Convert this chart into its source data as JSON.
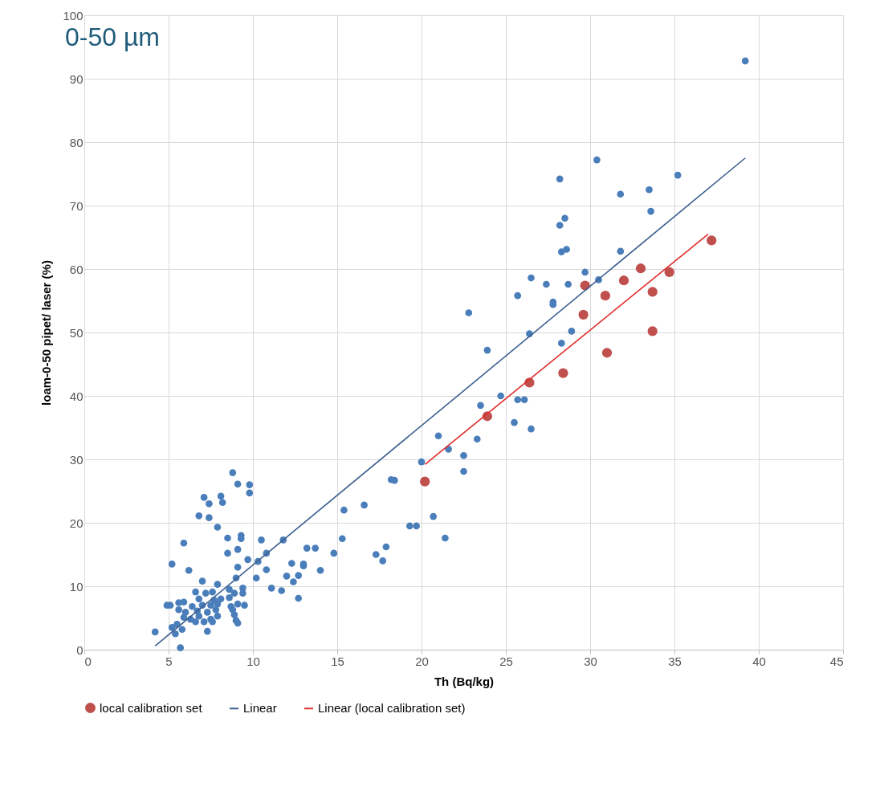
{
  "chart_data": {
    "type": "scatter",
    "title": "0-50 µm",
    "xlabel": "Th (Bq/kg)",
    "ylabel": "loam-0-50 pipet/ laser (%)",
    "xlim": [
      0,
      45
    ],
    "xticks": [
      0,
      5,
      10,
      15,
      20,
      25,
      30,
      35,
      40,
      45
    ],
    "ylim": [
      0,
      100
    ],
    "yticks": [
      0,
      10,
      20,
      30,
      40,
      50,
      60,
      70,
      80,
      90,
      100
    ],
    "grid": true,
    "legend": "bottom",
    "series": [
      {
        "marker": "circle",
        "color": "#4a7ebb",
        "x": [
          39.2,
          30.4,
          28.2,
          35.2,
          33.5,
          31.8,
          33.6,
          28.5,
          28.2,
          28.6,
          28.3,
          31.8,
          29.7,
          26.5,
          30.5,
          27.4,
          28.7,
          25.7,
          27.8,
          27.8,
          22.8,
          28.9,
          26.4,
          28.3,
          23.9,
          24.7,
          23.5,
          25.7,
          26.1,
          25.5,
          26.5,
          21.0,
          23.3,
          20.0,
          22.5,
          21.6,
          22.5,
          18.2,
          18.4,
          16.6,
          15.4,
          20.7,
          19.3,
          19.7,
          21.4,
          15.3,
          17.3,
          17.9,
          17.7,
          14.8,
          13.2,
          13.7,
          14.0,
          13.0,
          13.0,
          12.3,
          12.7,
          12.0,
          12.7,
          12.4,
          11.7,
          11.1,
          10.8,
          10.2,
          10.8,
          10.5,
          11.8,
          10.3,
          8.8,
          9.1,
          9.8,
          9.8,
          7.1,
          8.1,
          7.4,
          8.2,
          6.8,
          7.4,
          7.9,
          5.9,
          8.5,
          9.3,
          9.3,
          9.1,
          8.5,
          5.2,
          9.7,
          6.2,
          9.1,
          9.0,
          7.0,
          7.9,
          9.4,
          4.2,
          5.7,
          5.2,
          5.4,
          7.3,
          4.9,
          5.1,
          6.6,
          7.2,
          7.6,
          8.6,
          9.4,
          8.9,
          6.8,
          8.1,
          7.7,
          8.6,
          5.6,
          5.9,
          6.4,
          7.0,
          7.5,
          7.9,
          8.7,
          9.1,
          9.5,
          5.6,
          6.0,
          6.7,
          7.3,
          7.8,
          8.8,
          5.9,
          6.3,
          6.8,
          7.5,
          7.9,
          8.9,
          9.0,
          9.1,
          5.5,
          6.6,
          7.1,
          7.6,
          5.8
        ],
        "values": [
          92.8,
          77.2,
          74.2,
          74.8,
          72.5,
          71.8,
          69.1,
          68.0,
          66.9,
          63.1,
          62.7,
          62.8,
          59.5,
          58.6,
          58.3,
          57.6,
          57.6,
          55.8,
          54.8,
          54.4,
          53.1,
          50.2,
          49.8,
          48.3,
          47.2,
          40.0,
          38.5,
          39.4,
          39.4,
          35.8,
          34.8,
          33.7,
          33.2,
          29.6,
          30.6,
          31.6,
          28.1,
          26.8,
          26.7,
          22.8,
          22.0,
          21.0,
          19.5,
          19.5,
          17.6,
          17.5,
          15.0,
          16.2,
          14.0,
          15.2,
          16.0,
          16.0,
          12.5,
          13.5,
          13.2,
          13.6,
          11.7,
          11.6,
          8.1,
          10.7,
          9.3,
          9.7,
          12.6,
          11.3,
          15.2,
          17.3,
          17.3,
          13.9,
          27.9,
          26.1,
          26.0,
          24.7,
          24.0,
          24.2,
          23.0,
          23.2,
          21.1,
          20.8,
          19.3,
          16.8,
          17.6,
          18.0,
          17.5,
          15.8,
          15.2,
          13.5,
          14.2,
          12.5,
          13.0,
          11.3,
          10.8,
          10.3,
          9.7,
          2.8,
          0.3,
          3.5,
          2.5,
          2.9,
          7.0,
          7.0,
          9.1,
          8.9,
          9.1,
          9.5,
          8.9,
          8.9,
          8.0,
          8.0,
          7.8,
          8.2,
          7.4,
          7.5,
          6.8,
          7.0,
          7.0,
          7.2,
          6.8,
          7.2,
          7.0,
          6.3,
          5.9,
          6.1,
          5.9,
          6.3,
          6.3,
          5.1,
          4.8,
          5.3,
          4.8,
          5.3,
          5.5,
          4.6,
          4.2,
          4.0,
          4.4,
          4.4,
          4.4,
          3.2
        ]
      },
      {
        "type": "scatter",
        "marker": "circle",
        "name": "local calibration set",
        "color": "#c0504d",
        "x": [
          20.2,
          23.9,
          26.4,
          28.4,
          29.6,
          29.7,
          30.9,
          31.0,
          32.0,
          33.0,
          33.7,
          33.7,
          34.7,
          37.2
        ],
        "values": [
          26.5,
          36.8,
          42.1,
          43.6,
          52.8,
          57.4,
          55.8,
          46.8,
          58.2,
          60.1,
          56.4,
          50.2,
          59.5,
          64.5
        ]
      },
      {
        "type": "line",
        "name": "Linear",
        "color": "#3b5f8e",
        "x": [
          4.2,
          39.2
        ],
        "values": [
          0.6,
          77.5
        ]
      },
      {
        "type": "line",
        "name": "Linear (local calibration set)",
        "color": "#e02b2b",
        "x": [
          20.2,
          37.0
        ],
        "values": [
          29.2,
          65.5
        ]
      }
    ]
  }
}
